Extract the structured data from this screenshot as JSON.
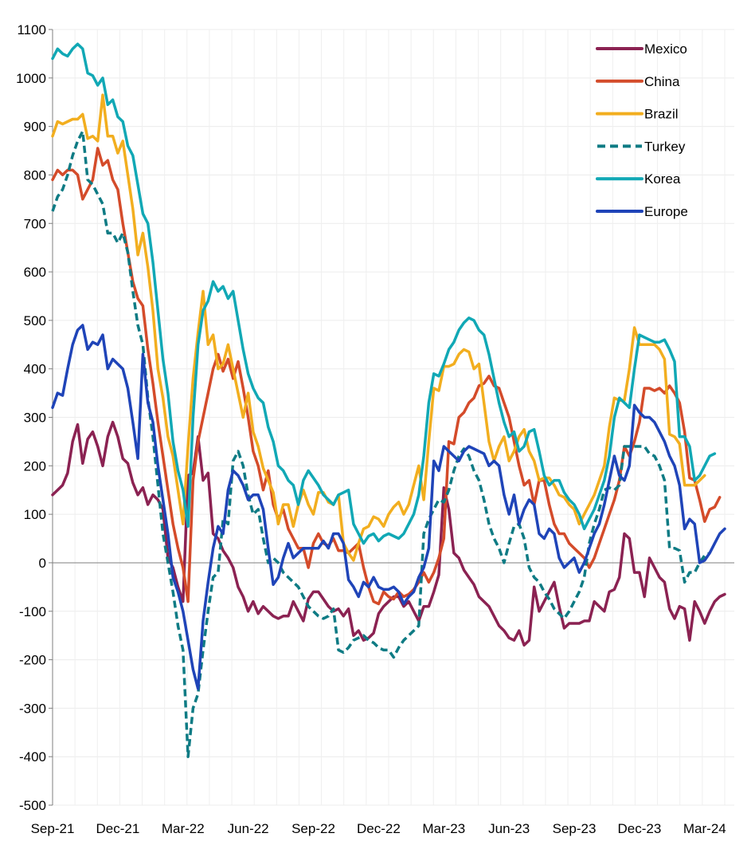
{
  "chart_data": {
    "type": "line",
    "title": "",
    "xlabel": "",
    "ylabel": "",
    "ylim": [
      -500,
      1100
    ],
    "yticks": [
      -500,
      -400,
      -300,
      -200,
      -100,
      0,
      100,
      200,
      300,
      400,
      500,
      600,
      700,
      800,
      900,
      1000,
      1100
    ],
    "ytick_labels": [
      "-500",
      "-400",
      "-300",
      "-200",
      "-100",
      "0",
      "100",
      "200",
      "300",
      "400",
      "500",
      "600",
      "700",
      "800",
      "900",
      "1000",
      "1100"
    ],
    "xtick_labels": [
      "Sep-21",
      "Dec-21",
      "Mar-22",
      "Jun-22",
      "Sep-22",
      "Dec-22",
      "Mar-23",
      "Jun-23",
      "Sep-23",
      "Dec-23",
      "Mar-24"
    ],
    "x_frequency": "weekly",
    "x_weeks_per_quarter": 13,
    "grid": true,
    "zero_line": true,
    "legend_position": "top-right",
    "series": [
      {
        "name": "Mexico",
        "color": "#8B2252",
        "dash": "solid",
        "values": [
          140,
          150,
          160,
          185,
          250,
          285,
          205,
          255,
          270,
          240,
          200,
          260,
          290,
          260,
          215,
          205,
          165,
          140,
          155,
          120,
          140,
          130,
          110,
          10,
          -10,
          -50,
          -80,
          180,
          185,
          260,
          170,
          185,
          60,
          50,
          25,
          10,
          -10,
          -50,
          -70,
          -100,
          -80,
          -105,
          -90,
          -100,
          -110,
          -115,
          -110,
          -110,
          -80,
          -100,
          -120,
          -75,
          -60,
          -60,
          -75,
          -90,
          -100,
          -95,
          -110,
          -95,
          -150,
          -140,
          -160,
          -155,
          -145,
          -105,
          -90,
          -80,
          -70,
          -70,
          -90,
          -80,
          -100,
          -120,
          -90,
          -90,
          -60,
          -25,
          155,
          110,
          20,
          10,
          -15,
          -30,
          -45,
          -70,
          -80,
          -90,
          -110,
          -130,
          -140,
          -155,
          -160,
          -140,
          -170,
          -160,
          -50,
          -100,
          -80,
          -60,
          -40,
          -90,
          -135,
          -125,
          -125,
          -125,
          -120,
          -120,
          -80,
          -90,
          -100,
          -60,
          -55,
          -30,
          60,
          50,
          -20,
          -20,
          -70,
          10,
          -10,
          -30,
          -40,
          -95,
          -115,
          -90,
          -95,
          -160,
          -80,
          -100,
          -125,
          -100,
          -80,
          -70,
          -65
        ]
      },
      {
        "name": "China",
        "color": "#D44B2A",
        "dash": "solid",
        "values": [
          790,
          810,
          800,
          810,
          810,
          800,
          750,
          770,
          790,
          855,
          820,
          830,
          790,
          770,
          700,
          640,
          580,
          545,
          530,
          440,
          370,
          290,
          220,
          150,
          80,
          30,
          -10,
          -80,
          170,
          250,
          300,
          350,
          400,
          430,
          395,
          420,
          380,
          415,
          360,
          300,
          230,
          200,
          150,
          190,
          120,
          90,
          110,
          70,
          50,
          30,
          30,
          -10,
          40,
          60,
          40,
          35,
          50,
          25,
          25,
          20,
          30,
          40,
          -10,
          -50,
          -80,
          -85,
          -60,
          -70,
          -75,
          -60,
          -70,
          -65,
          -55,
          -40,
          -20,
          -40,
          -20,
          10,
          50,
          250,
          245,
          300,
          310,
          330,
          340,
          365,
          370,
          385,
          365,
          360,
          330,
          300,
          250,
          200,
          160,
          170,
          120,
          170,
          170,
          120,
          80,
          60,
          60,
          40,
          30,
          20,
          10,
          -10,
          10,
          40,
          70,
          100,
          130,
          170,
          240,
          220,
          250,
          290,
          360,
          360,
          355,
          360,
          350,
          365,
          350,
          330,
          270,
          175,
          170,
          130,
          85,
          110,
          115,
          135
        ]
      },
      {
        "name": "Brazil",
        "color": "#F2AE1F",
        "dash": "solid",
        "values": [
          880,
          910,
          905,
          910,
          915,
          915,
          925,
          875,
          880,
          870,
          965,
          880,
          880,
          845,
          870,
          800,
          730,
          635,
          680,
          610,
          520,
          400,
          340,
          260,
          220,
          150,
          80,
          240,
          380,
          475,
          560,
          450,
          470,
          400,
          410,
          450,
          400,
          350,
          300,
          350,
          270,
          240,
          195,
          170,
          145,
          80,
          120,
          120,
          75,
          120,
          150,
          120,
          100,
          145,
          145,
          125,
          120,
          140,
          40,
          20,
          5,
          40,
          70,
          75,
          95,
          90,
          75,
          100,
          115,
          125,
          100,
          120,
          160,
          200,
          130,
          250,
          360,
          355,
          405,
          405,
          410,
          430,
          440,
          435,
          400,
          410,
          330,
          250,
          210,
          240,
          260,
          210,
          230,
          260,
          275,
          230,
          210,
          170,
          175,
          175,
          160,
          140,
          135,
          120,
          110,
          80,
          100,
          120,
          140,
          170,
          200,
          280,
          340,
          335,
          335,
          400,
          485,
          450,
          450,
          450,
          450,
          440,
          420,
          265,
          260,
          245,
          160,
          160,
          160,
          170,
          180
        ]
      },
      {
        "name": "Turkey",
        "color": "#0E7B84",
        "dash": "dashed",
        "values": [
          725,
          755,
          770,
          800,
          840,
          870,
          890,
          790,
          780,
          760,
          740,
          680,
          680,
          660,
          680,
          640,
          560,
          490,
          450,
          340,
          260,
          160,
          60,
          0,
          -60,
          -130,
          -180,
          -400,
          -300,
          -270,
          -180,
          -100,
          -30,
          -20,
          90,
          80,
          210,
          230,
          200,
          140,
          100,
          110,
          50,
          0,
          10,
          0,
          -20,
          -30,
          -40,
          -50,
          -70,
          -90,
          -100,
          -110,
          -115,
          -110,
          -95,
          -180,
          -185,
          -175,
          -160,
          -155,
          -150,
          -160,
          -165,
          -175,
          -180,
          -180,
          -195,
          -175,
          -160,
          -150,
          -140,
          -130,
          60,
          90,
          110,
          130,
          125,
          150,
          190,
          220,
          235,
          220,
          190,
          170,
          130,
          80,
          50,
          30,
          0,
          40,
          75,
          80,
          50,
          -10,
          -30,
          -40,
          -60,
          -75,
          -95,
          -105,
          -115,
          -100,
          -80,
          -60,
          -30,
          40,
          80,
          110,
          150,
          155,
          150,
          160,
          240,
          240,
          240,
          240,
          240,
          225,
          220,
          200,
          170,
          30,
          30,
          25,
          -40,
          -20,
          -20,
          0,
          15,
          20
        ]
      },
      {
        "name": "Korea",
        "color": "#11A8B5",
        "dash": "solid",
        "values": [
          1040,
          1060,
          1050,
          1045,
          1060,
          1070,
          1060,
          1010,
          1005,
          985,
          1000,
          945,
          955,
          920,
          910,
          860,
          840,
          780,
          720,
          700,
          620,
          520,
          420,
          350,
          250,
          190,
          150,
          75,
          300,
          450,
          520,
          540,
          580,
          560,
          570,
          545,
          560,
          500,
          440,
          390,
          360,
          340,
          330,
          280,
          250,
          200,
          190,
          170,
          160,
          120,
          170,
          190,
          175,
          160,
          140,
          130,
          120,
          140,
          145,
          150,
          80,
          60,
          40,
          55,
          60,
          45,
          55,
          60,
          55,
          50,
          60,
          80,
          100,
          140,
          220,
          330,
          390,
          385,
          410,
          440,
          455,
          480,
          495,
          505,
          500,
          480,
          470,
          430,
          380,
          330,
          290,
          260,
          270,
          230,
          240,
          270,
          275,
          230,
          180,
          160,
          170,
          170,
          145,
          130,
          120,
          100,
          70,
          90,
          110,
          140,
          170,
          220,
          300,
          340,
          330,
          320,
          400,
          470,
          465,
          460,
          455,
          455,
          460,
          440,
          415,
          260,
          260,
          240,
          170,
          180,
          200,
          220,
          225
        ]
      },
      {
        "name": "Europe",
        "color": "#1F44B8",
        "dash": "solid",
        "values": [
          320,
          350,
          345,
          400,
          450,
          480,
          490,
          440,
          455,
          450,
          470,
          400,
          420,
          410,
          400,
          360,
          290,
          215,
          430,
          330,
          290,
          200,
          130,
          60,
          -30,
          -60,
          -100,
          -160,
          -220,
          -260,
          -120,
          -40,
          30,
          75,
          60,
          150,
          190,
          180,
          160,
          130,
          140,
          140,
          110,
          30,
          -45,
          -30,
          10,
          40,
          10,
          20,
          30,
          30,
          30,
          30,
          45,
          30,
          60,
          60,
          40,
          -35,
          -50,
          -70,
          -40,
          -50,
          -30,
          -50,
          -55,
          -55,
          -50,
          -60,
          -85,
          -70,
          -60,
          -30,
          -10,
          30,
          210,
          190,
          240,
          230,
          220,
          210,
          230,
          240,
          235,
          230,
          225,
          200,
          210,
          200,
          140,
          100,
          140,
          80,
          110,
          130,
          120,
          60,
          50,
          70,
          60,
          10,
          -10,
          0,
          10,
          -20,
          0,
          30,
          60,
          80,
          120,
          170,
          220,
          180,
          170,
          200,
          325,
          310,
          300,
          300,
          290,
          270,
          250,
          220,
          200,
          160,
          70,
          90,
          80,
          0,
          5,
          20,
          40,
          60,
          70
        ]
      }
    ]
  },
  "legend": {
    "items": [
      {
        "label": "Mexico"
      },
      {
        "label": "China"
      },
      {
        "label": "Brazil"
      },
      {
        "label": "Turkey"
      },
      {
        "label": "Korea"
      },
      {
        "label": "Europe"
      }
    ]
  }
}
